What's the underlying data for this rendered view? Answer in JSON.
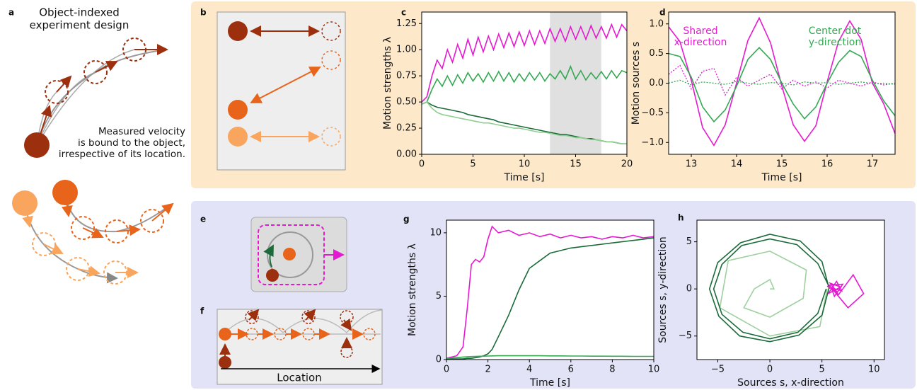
{
  "panel_labels": [
    "a",
    "b",
    "c",
    "d",
    "e",
    "f",
    "g",
    "h"
  ],
  "diagram_a": {
    "title": [
      "Object-indexed",
      "experiment design"
    ],
    "note": [
      "Measured velocity",
      "is bound to the object,",
      "irrespective of its location."
    ]
  },
  "diagram_f": {
    "axis_label": "Location"
  },
  "chart_data": [
    {
      "type": "line",
      "xlabel": "Time [s]",
      "ylabel": "Motion strengths λ",
      "xlim": [
        0,
        20
      ],
      "ylim": [
        0,
        1.36
      ],
      "xticks": [
        0,
        5,
        10,
        15,
        20
      ],
      "yticks": [
        {
          "value": 0,
          "label": "0.00"
        },
        {
          "value": 0.25,
          "label": "0.25"
        },
        {
          "value": 0.5,
          "label": "0.50"
        },
        {
          "value": 0.75,
          "label": "0.75"
        },
        {
          "value": 1,
          "label": "1.00"
        },
        {
          "value": 1.25,
          "label": "1.25"
        }
      ],
      "shade": [
        12.5,
        17.5
      ],
      "x": [
        0,
        0.5,
        1,
        1.5,
        2,
        2.5,
        3,
        3.5,
        4,
        4.5,
        5,
        5.5,
        6,
        6.5,
        7,
        7.5,
        8,
        8.5,
        9,
        9.5,
        10,
        10.5,
        11,
        11.5,
        12,
        12.5,
        13,
        13.5,
        14,
        14.5,
        15,
        15.5,
        16,
        16.5,
        17,
        17.5,
        18,
        18.5,
        19,
        19.5,
        20
      ],
      "series": [
        {
          "color": "#e619d2",
          "values": [
            0.5,
            0.55,
            0.75,
            0.9,
            0.82,
            1.0,
            0.88,
            1.05,
            0.92,
            1.1,
            0.95,
            1.12,
            0.98,
            1.13,
            1.0,
            1.15,
            1.02,
            1.16,
            1.03,
            1.17,
            1.04,
            1.18,
            1.05,
            1.18,
            1.06,
            1.2,
            1.08,
            1.2,
            1.08,
            1.22,
            1.1,
            1.22,
            1.1,
            1.23,
            1.11,
            1.22,
            1.11,
            1.24,
            1.12,
            1.24,
            1.18
          ]
        },
        {
          "color": "#34a853",
          "values": [
            0.48,
            0.5,
            0.62,
            0.72,
            0.65,
            0.75,
            0.66,
            0.76,
            0.68,
            0.78,
            0.7,
            0.77,
            0.69,
            0.78,
            0.7,
            0.79,
            0.7,
            0.78,
            0.69,
            0.77,
            0.7,
            0.78,
            0.71,
            0.78,
            0.7,
            0.77,
            0.72,
            0.8,
            0.72,
            0.84,
            0.72,
            0.8,
            0.71,
            0.78,
            0.72,
            0.79,
            0.72,
            0.8,
            0.73,
            0.8,
            0.78
          ]
        },
        {
          "color": "#1b6b3a",
          "values": [
            0.48,
            0.5,
            0.47,
            0.45,
            0.44,
            0.43,
            0.42,
            0.41,
            0.4,
            0.38,
            0.37,
            0.36,
            0.35,
            0.34,
            0.33,
            0.31,
            0.3,
            0.29,
            0.28,
            0.27,
            0.26,
            0.25,
            0.24,
            0.23,
            0.22,
            0.21,
            0.2,
            0.19,
            0.19,
            0.18,
            0.17,
            0.16,
            0.15,
            0.15,
            0.14,
            0.13,
            0.12,
            0.12,
            0.11,
            0.1,
            0.1
          ]
        },
        {
          "color": "#8fcf8f",
          "values": [
            0.48,
            0.5,
            0.44,
            0.4,
            0.38,
            0.37,
            0.36,
            0.35,
            0.34,
            0.33,
            0.32,
            0.31,
            0.3,
            0.3,
            0.29,
            0.28,
            0.27,
            0.26,
            0.25,
            0.25,
            0.24,
            0.23,
            0.22,
            0.21,
            0.21,
            0.2,
            0.19,
            0.18,
            0.18,
            0.17,
            0.16,
            0.16,
            0.15,
            0.14,
            0.14,
            0.13,
            0.12,
            0.12,
            0.11,
            0.1,
            0.1
          ]
        }
      ]
    },
    {
      "type": "line",
      "xlabel": "Time [s]",
      "ylabel": "Motion sources s",
      "xlim": [
        12.5,
        17.5
      ],
      "ylim": [
        -1.2,
        1.2
      ],
      "xticks": [
        13,
        14,
        15,
        16,
        17
      ],
      "yticks": [
        {
          "value": -1,
          "label": "−1.0"
        },
        {
          "value": -0.5,
          "label": "−0.5"
        },
        {
          "value": 0,
          "label": "0.0"
        },
        {
          "value": 0.5,
          "label": "0.5"
        },
        {
          "value": 1,
          "label": "1.0"
        }
      ],
      "annotations": [
        {
          "lines": [
            "Shared",
            "x-direction"
          ],
          "color": "#e619d2"
        },
        {
          "lines": [
            "Center dot",
            "y-direction"
          ],
          "color": "#34a853"
        }
      ],
      "x": [
        12.5,
        12.75,
        13,
        13.25,
        13.5,
        13.75,
        14,
        14.25,
        14.5,
        14.75,
        15,
        15.25,
        15.5,
        15.75,
        16,
        16.25,
        16.5,
        16.75,
        17,
        17.25,
        17.5
      ],
      "series": [
        {
          "color": "#e619d2",
          "dash": true,
          "values": [
            0.15,
            0.3,
            -0.1,
            0.2,
            0.25,
            -0.2,
            0.1,
            -0.05,
            0.05,
            0.15,
            -0.1,
            0.05,
            -0.05,
            0.02,
            -0.08,
            0.05,
            0.0,
            -0.05,
            0.02,
            -0.03,
            0.0
          ]
        },
        {
          "color": "#34a853",
          "dash": true,
          "values": [
            0.0,
            0.05,
            -0.03,
            0.02,
            0.0,
            -0.02,
            0.03,
            0.0,
            -0.02,
            0.01,
            0.0,
            -0.03,
            0.02,
            0.0,
            0.01,
            -0.02,
            0.0,
            0.02,
            -0.01,
            0.0,
            -0.02
          ]
        },
        {
          "color": "#e619d2",
          "values": [
            0.95,
            0.7,
            0.05,
            -0.75,
            -1.05,
            -0.7,
            0.0,
            0.72,
            1.1,
            0.68,
            -0.05,
            -0.7,
            -0.98,
            -0.72,
            0.02,
            0.7,
            1.05,
            0.74,
            0.0,
            -0.35,
            -0.85
          ]
        },
        {
          "color": "#34a853",
          "values": [
            0.5,
            0.45,
            0.1,
            -0.4,
            -0.65,
            -0.45,
            -0.05,
            0.4,
            0.6,
            0.4,
            0.0,
            -0.35,
            -0.6,
            -0.4,
            0.0,
            0.35,
            0.55,
            0.45,
            0.05,
            -0.3,
            -0.55
          ]
        }
      ]
    },
    {
      "type": "line",
      "xlabel": "Time [s]",
      "ylabel": "Motion strengths λ",
      "xlim": [
        0,
        10
      ],
      "ylim": [
        0,
        11
      ],
      "xticks": [
        0,
        2,
        4,
        6,
        8,
        10
      ],
      "yticks": [
        0,
        5,
        10
      ],
      "x": [
        0,
        0.5,
        0.8,
        1,
        1.2,
        1.4,
        1.6,
        1.8,
        2,
        2.2,
        2.5,
        3,
        3.5,
        4,
        4.5,
        5,
        5.5,
        6,
        6.5,
        7,
        7.5,
        8,
        8.5,
        9,
        9.5,
        10
      ],
      "series": [
        {
          "color": "#e619d2",
          "values": [
            0.1,
            0.3,
            1.0,
            4.0,
            7.5,
            7.9,
            7.7,
            8.1,
            9.5,
            10.5,
            10.0,
            10.2,
            9.8,
            10.0,
            9.7,
            9.9,
            9.6,
            9.8,
            9.6,
            9.7,
            9.5,
            9.7,
            9.6,
            9.8,
            9.6,
            9.7
          ]
        },
        {
          "color": "#1b6b3a",
          "values": [
            0.05,
            0.05,
            0.05,
            0.1,
            0.1,
            0.15,
            0.2,
            0.3,
            0.45,
            0.8,
            1.8,
            3.5,
            5.5,
            7.2,
            7.8,
            8.4,
            8.6,
            8.8,
            8.9,
            9.0,
            9.1,
            9.2,
            9.3,
            9.4,
            9.5,
            9.6
          ]
        },
        {
          "color": "#34a853",
          "values": [
            0.1,
            0.15,
            0.2,
            0.22,
            0.24,
            0.25,
            0.26,
            0.27,
            0.28,
            0.29,
            0.3,
            0.3,
            0.3,
            0.3,
            0.3,
            0.29,
            0.29,
            0.28,
            0.28,
            0.27,
            0.27,
            0.26,
            0.26,
            0.25,
            0.25,
            0.25
          ]
        }
      ]
    },
    {
      "type": "line",
      "xlabel": "Sources s, x-direction",
      "ylabel": "Sources s, y-direction",
      "xlim": [
        -7,
        11
      ],
      "ylim": [
        -7.5,
        7.3
      ],
      "xticks": [
        {
          "value": -5,
          "label": "−5"
        },
        0,
        5,
        10
      ],
      "yticks": [
        {
          "value": -5,
          "label": "−5"
        },
        0,
        5
      ],
      "series": [
        {
          "color": "#9fd09f",
          "x": [
            0,
            0.4,
            0,
            -1.5,
            -2.5,
            0,
            3.2,
            3.5,
            0,
            -4,
            -4.8,
            0,
            4.8,
            5.5
          ],
          "values": [
            0,
            0,
            1,
            0,
            -2,
            -3,
            -1,
            2,
            4,
            3,
            -2,
            -5,
            -4,
            0
          ]
        },
        {
          "color": "#1b6b3a",
          "x": [
            5.7,
            5.0,
            2.9,
            0,
            -2.8,
            -5.0,
            -5.8,
            -4.9,
            -2.9,
            0,
            2.8,
            5.0,
            5.7,
            4.6,
            2.6,
            0,
            -2.7,
            -4.6,
            -5.4,
            -4.6,
            -2.6,
            0,
            2.7,
            4.6,
            5.4
          ],
          "values": [
            0,
            2.9,
            5.1,
            5.8,
            4.9,
            2.8,
            0,
            -2.9,
            -5.0,
            -5.6,
            -4.9,
            -2.8,
            0.2,
            2.7,
            4.7,
            5.3,
            4.6,
            2.6,
            0,
            -2.7,
            -4.6,
            -5.3,
            -4.6,
            -2.6,
            0
          ]
        },
        {
          "color": "#e619d2",
          "x": [
            5.5,
            6.5,
            5.8,
            6.8,
            5.6,
            6.4,
            6.9,
            5.9,
            6.2,
            7.0,
            5.7,
            6.6,
            8,
            9,
            7.5,
            6.0
          ],
          "values": [
            0.3,
            -0.4,
            0.6,
            0.2,
            -0.5,
            0.8,
            -0.2,
            0.1,
            -0.8,
            0.5,
            0.4,
            -0.6,
            1.5,
            -0.5,
            -2,
            0
          ]
        }
      ]
    }
  ]
}
